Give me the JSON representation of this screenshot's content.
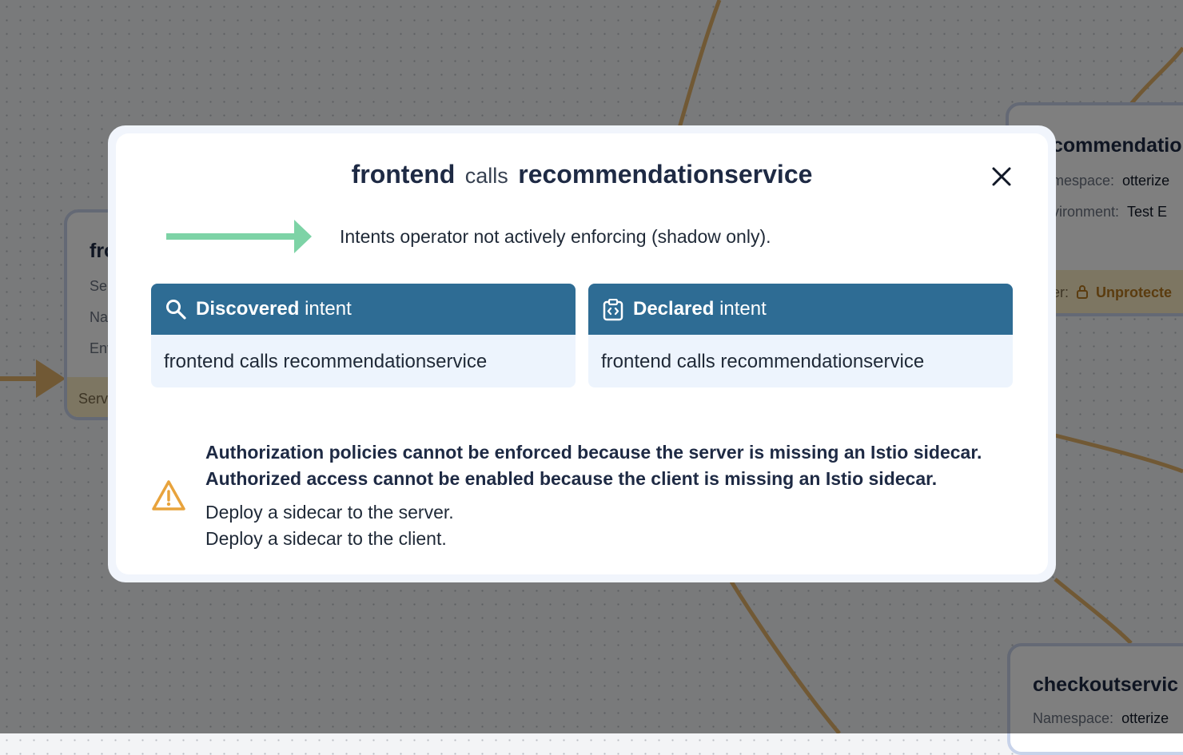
{
  "background": {
    "nodes": {
      "left": {
        "title": "fro",
        "rows": [
          "Se",
          "Na",
          "Env"
        ],
        "footer": "Serv"
      },
      "top_right": {
        "title": "commendatio",
        "namespace_label": "mespace:",
        "namespace_value": "otterize",
        "environment_label": "vironment:",
        "environment_value": "Test E",
        "footer_label": "er:",
        "footer_status": "Unprotecte"
      },
      "bottom_right": {
        "title": "checkoutservic",
        "namespace_label": "Namespace:",
        "namespace_value": "otterize"
      }
    }
  },
  "modal": {
    "title": {
      "client": "frontend",
      "verb": "calls",
      "server": "recommendationservice"
    },
    "close_icon": "close-icon",
    "status": {
      "arrow_color": "#7dd3a6",
      "text": "Intents operator not actively enforcing (shadow only)."
    },
    "discovered": {
      "icon": "search-icon",
      "title_bold": "Discovered",
      "title_rest": "intent",
      "body": "frontend calls recommendationservice"
    },
    "declared": {
      "icon": "code-clipboard-icon",
      "title_bold": "Declared",
      "title_rest": "intent",
      "body": "frontend calls recommendationservice"
    },
    "warnings": {
      "icon": "warning-icon",
      "bold": [
        "Authorization policies cannot be enforced because the server is missing an Istio sidecar.",
        "Authorized access cannot be enabled because the client is missing an Istio sidecar."
      ],
      "actions": [
        "Deploy a sidecar to the server.",
        "Deploy a sidecar to the client."
      ]
    }
  },
  "colors": {
    "header_blue": "#2e6c94",
    "edge": "#e2b26a",
    "warning": "#e8a33c"
  }
}
